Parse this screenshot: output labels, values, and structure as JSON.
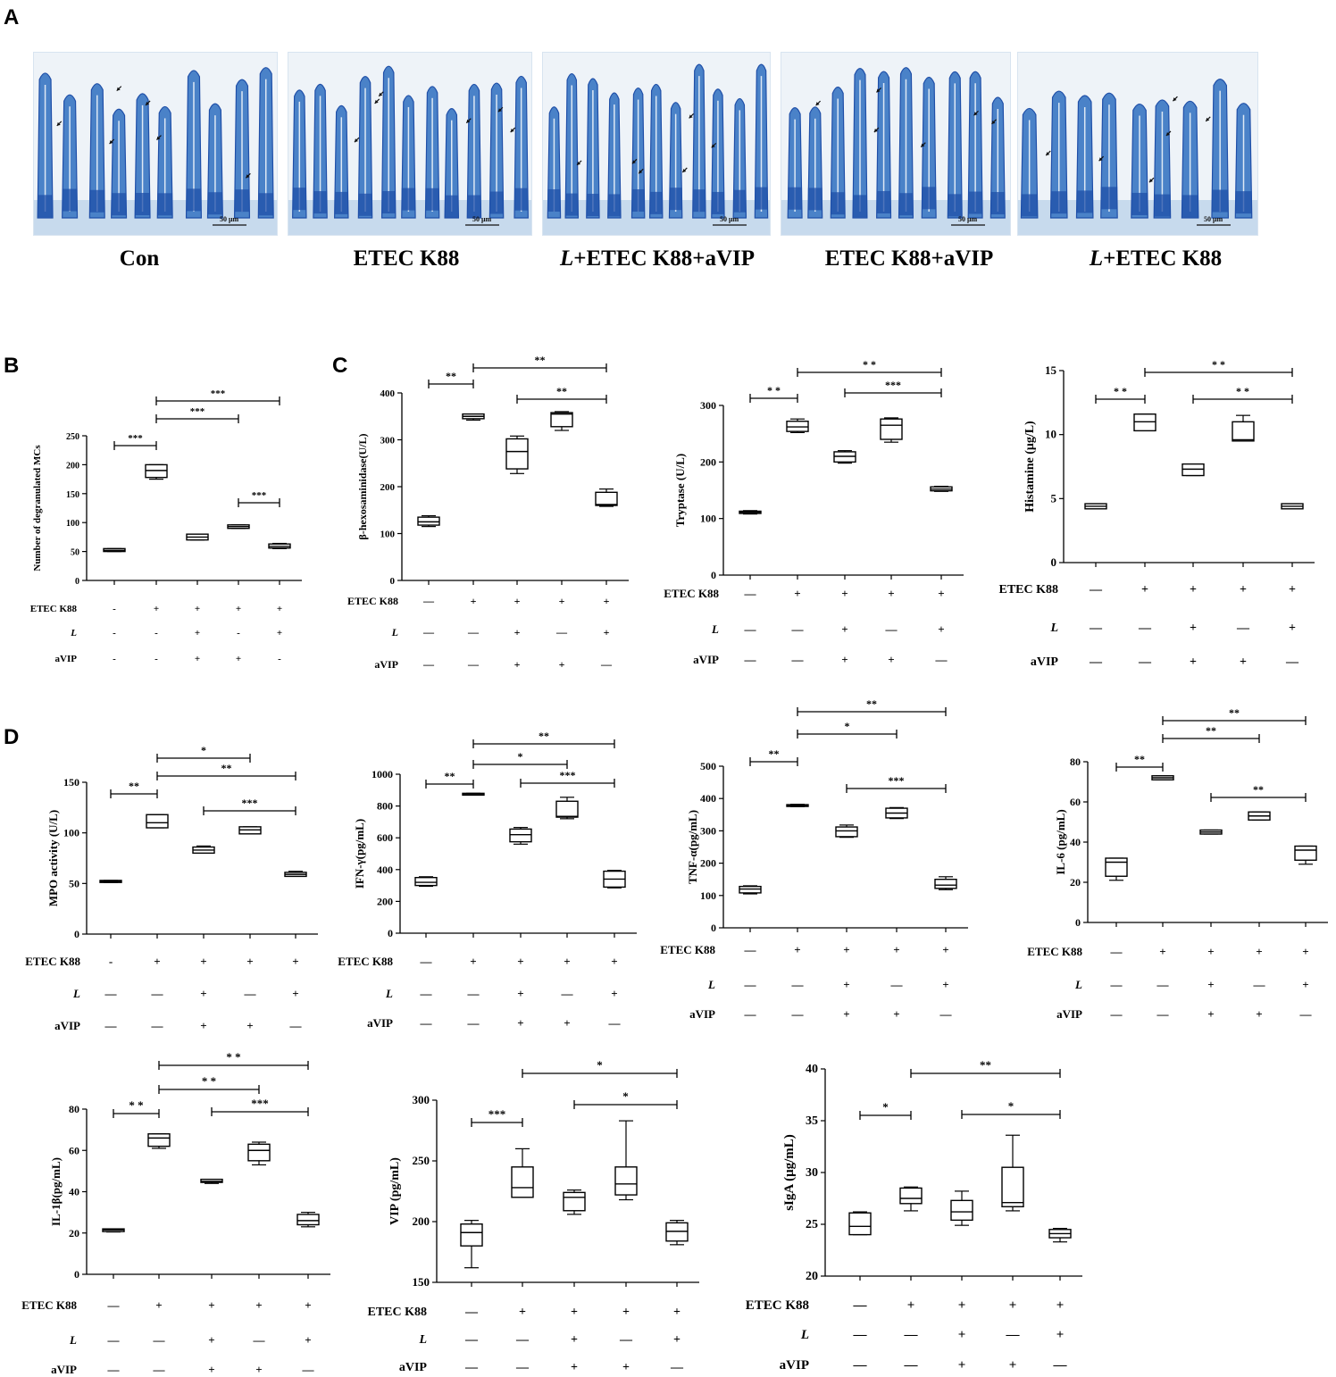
{
  "panels": {
    "a": "A",
    "b": "B",
    "c": "C",
    "d": "D"
  },
  "micrographs": [
    {
      "caption": "Con",
      "scale": "50 μm"
    },
    {
      "caption": "ETEC K88",
      "scale": "50 μm"
    },
    {
      "caption": "L+ETEC K88+aVIP",
      "caption_italic": "L",
      "scale": "50 μm"
    },
    {
      "caption": "ETEC K88+aVIP",
      "scale": "50 μm"
    },
    {
      "caption": "L+ETEC K88",
      "caption_italic": "L",
      "scale": "50 μm"
    }
  ],
  "colors": {
    "tissue_blue": "#4a82c8",
    "dark_blue": "#1f4fa8",
    "light_blue": "#b7cfe8",
    "background": "#ffffff"
  },
  "chart_data": [
    {
      "id": "mcs",
      "type": "box",
      "ylabel": "Number of degranulated MCs",
      "ylim": [
        0,
        250
      ],
      "yticks": [
        0,
        50,
        100,
        150,
        200,
        250
      ],
      "boxes": [
        {
          "min": 50,
          "q1": 50,
          "median": 52,
          "q3": 55,
          "max": 55
        },
        {
          "min": 175,
          "q1": 178,
          "median": 190,
          "q3": 200,
          "max": 200
        },
        {
          "min": 70,
          "q1": 70,
          "median": 75,
          "q3": 80,
          "max": 80
        },
        {
          "min": 90,
          "q1": 90,
          "median": 93,
          "q3": 96,
          "max": 96
        },
        {
          "min": 55,
          "q1": 56,
          "median": 59,
          "q3": 63,
          "max": 64
        }
      ],
      "row_labels": [
        "ETEC K88",
        "L",
        "aVIP"
      ],
      "signs": [
        [
          "-",
          "+",
          "+",
          "+",
          "+"
        ],
        [
          "-",
          "-",
          "+",
          "-",
          "+"
        ],
        [
          "-",
          "-",
          "+",
          "+",
          "-"
        ]
      ],
      "sig": [
        {
          "from": 1,
          "to": 2,
          "label": "***"
        },
        {
          "from": 2,
          "to": 4,
          "label": "***"
        },
        {
          "from": 2,
          "to": 5,
          "label": "***"
        },
        {
          "from": 4,
          "to": 5,
          "label": "***"
        }
      ]
    },
    {
      "id": "hex",
      "type": "box",
      "ylabel": "β-hexosaminidase(U/L)",
      "ylim": [
        0,
        400
      ],
      "yticks": [
        0,
        100,
        200,
        300,
        400
      ],
      "boxes": [
        {
          "min": 115,
          "q1": 118,
          "median": 125,
          "q3": 135,
          "max": 138
        },
        {
          "min": 342,
          "q1": 345,
          "median": 350,
          "q3": 355,
          "max": 355
        },
        {
          "min": 228,
          "q1": 238,
          "median": 275,
          "q3": 302,
          "max": 308
        },
        {
          "min": 320,
          "q1": 328,
          "median": 355,
          "q3": 358,
          "max": 360
        },
        {
          "min": 158,
          "q1": 160,
          "median": 162,
          "q3": 188,
          "max": 195
        }
      ],
      "row_labels": [
        "ETEC K88",
        "L",
        "aVIP"
      ],
      "signs": [
        [
          "—",
          "+",
          "+",
          "+",
          "+"
        ],
        [
          "—",
          "—",
          "+",
          "—",
          "+"
        ],
        [
          "—",
          "—",
          "+",
          "+",
          "—"
        ]
      ],
      "sig": [
        {
          "from": 1,
          "to": 2,
          "label": "**"
        },
        {
          "from": 2,
          "to": 5,
          "label": "**"
        },
        {
          "from": 3,
          "to": 5,
          "label": "**"
        }
      ]
    },
    {
      "id": "tryptase",
      "type": "box",
      "ylabel": "Tryptase (U/L)",
      "ylim": [
        0,
        300
      ],
      "yticks": [
        0,
        100,
        200,
        300
      ],
      "boxes": [
        {
          "min": 108,
          "q1": 109,
          "median": 111,
          "q3": 113,
          "max": 114
        },
        {
          "min": 252,
          "q1": 254,
          "median": 262,
          "q3": 272,
          "max": 276
        },
        {
          "min": 198,
          "q1": 200,
          "median": 210,
          "q3": 218,
          "max": 220
        },
        {
          "min": 235,
          "q1": 240,
          "median": 265,
          "q3": 276,
          "max": 278
        },
        {
          "min": 148,
          "q1": 149,
          "median": 152,
          "q3": 156,
          "max": 157
        }
      ],
      "row_labels": [
        "ETEC K88",
        "L",
        "aVIP"
      ],
      "signs": [
        [
          "—",
          "+",
          "+",
          "+",
          "+"
        ],
        [
          "—",
          "—",
          "+",
          "—",
          "+"
        ],
        [
          "—",
          "—",
          "+",
          "+",
          "—"
        ]
      ],
      "sig": [
        {
          "from": 1,
          "to": 2,
          "label": "* *"
        },
        {
          "from": 2,
          "to": 5,
          "label": "* *"
        },
        {
          "from": 3,
          "to": 5,
          "label": "***"
        }
      ]
    },
    {
      "id": "histamine",
      "type": "box",
      "ylabel": "Histamine (μg/L)",
      "ylim": [
        0,
        15
      ],
      "yticks": [
        0,
        5,
        10,
        15
      ],
      "boxes": [
        {
          "min": 4.2,
          "q1": 4.2,
          "median": 4.4,
          "q3": 4.6,
          "max": 4.6
        },
        {
          "min": 10.3,
          "q1": 10.3,
          "median": 11,
          "q3": 11.6,
          "max": 11.6
        },
        {
          "min": 6.8,
          "q1": 6.8,
          "median": 7.3,
          "q3": 7.7,
          "max": 7.7
        },
        {
          "min": 9.5,
          "q1": 9.5,
          "median": 9.6,
          "q3": 11,
          "max": 11.5
        },
        {
          "min": 4.2,
          "q1": 4.2,
          "median": 4.4,
          "q3": 4.6,
          "max": 4.6
        }
      ],
      "row_labels": [
        "ETEC K88",
        "L",
        "aVIP"
      ],
      "signs": [
        [
          "—",
          "+",
          "+",
          "+",
          "+"
        ],
        [
          "—",
          "—",
          "+",
          "—",
          "+"
        ],
        [
          "—",
          "—",
          "+",
          "+",
          "—"
        ]
      ],
      "sig": [
        {
          "from": 1,
          "to": 2,
          "label": "* *"
        },
        {
          "from": 2,
          "to": 5,
          "label": "* *"
        },
        {
          "from": 3,
          "to": 5,
          "label": "* *"
        }
      ]
    },
    {
      "id": "mpo",
      "type": "box",
      "ylabel": "MPO activity (U/L)",
      "ylim": [
        0,
        150
      ],
      "yticks": [
        0,
        50,
        100,
        150
      ],
      "boxes": [
        {
          "min": 51,
          "q1": 51,
          "median": 52,
          "q3": 53,
          "max": 53
        },
        {
          "min": 105,
          "q1": 105,
          "median": 110,
          "q3": 118,
          "max": 118
        },
        {
          "min": 80,
          "q1": 80,
          "median": 83,
          "q3": 86,
          "max": 87
        },
        {
          "min": 99,
          "q1": 99,
          "median": 103,
          "q3": 106,
          "max": 106
        },
        {
          "min": 57,
          "q1": 57,
          "median": 59,
          "q3": 61,
          "max": 62
        }
      ],
      "row_labels": [
        "ETEC K88",
        "L",
        "aVIP"
      ],
      "signs": [
        [
          "-",
          "+",
          "+",
          "+",
          "+"
        ],
        [
          "—",
          "—",
          "+",
          "—",
          "+"
        ],
        [
          "—",
          "—",
          "+",
          "+",
          "—"
        ]
      ],
      "sig": [
        {
          "from": 1,
          "to": 2,
          "label": "**"
        },
        {
          "from": 2,
          "to": 4,
          "label": "*"
        },
        {
          "from": 2,
          "to": 5,
          "label": "**"
        },
        {
          "from": 3,
          "to": 5,
          "label": "***"
        }
      ]
    },
    {
      "id": "ifn",
      "type": "box",
      "ylabel": "IFN-γ(pg/mL)",
      "ylim": [
        0,
        1000
      ],
      "yticks": [
        0,
        200,
        400,
        600,
        800,
        1000
      ],
      "boxes": [
        {
          "min": 295,
          "q1": 300,
          "median": 320,
          "q3": 350,
          "max": 355
        },
        {
          "min": 870,
          "q1": 872,
          "median": 876,
          "q3": 880,
          "max": 880
        },
        {
          "min": 560,
          "q1": 575,
          "median": 620,
          "q3": 655,
          "max": 665
        },
        {
          "min": 720,
          "q1": 730,
          "median": 735,
          "q3": 830,
          "max": 855
        },
        {
          "min": 285,
          "q1": 290,
          "median": 340,
          "q3": 390,
          "max": 395
        }
      ],
      "row_labels": [
        "ETEC K88",
        "L",
        "aVIP"
      ],
      "signs": [
        [
          "—",
          "+",
          "+",
          "+",
          "+"
        ],
        [
          "—",
          "—",
          "+",
          "—",
          "+"
        ],
        [
          "—",
          "—",
          "+",
          "+",
          "—"
        ]
      ],
      "sig": [
        {
          "from": 1,
          "to": 2,
          "label": "**"
        },
        {
          "from": 2,
          "to": 4,
          "label": "*"
        },
        {
          "from": 2,
          "to": 5,
          "label": "**"
        },
        {
          "from": 3,
          "to": 5,
          "label": "***"
        }
      ]
    },
    {
      "id": "tnf",
      "type": "box",
      "ylabel": "TNF-α(pg/mL)",
      "ylim": [
        0,
        500
      ],
      "yticks": [
        0,
        100,
        200,
        300,
        400,
        500
      ],
      "boxes": [
        {
          "min": 105,
          "q1": 108,
          "median": 120,
          "q3": 128,
          "max": 130
        },
        {
          "min": 375,
          "q1": 376,
          "median": 378,
          "q3": 381,
          "max": 382
        },
        {
          "min": 280,
          "q1": 282,
          "median": 300,
          "q3": 312,
          "max": 318
        },
        {
          "min": 338,
          "q1": 340,
          "median": 355,
          "q3": 370,
          "max": 372
        },
        {
          "min": 118,
          "q1": 122,
          "median": 132,
          "q3": 150,
          "max": 158
        }
      ],
      "row_labels": [
        "ETEC K88",
        "L",
        "aVIP"
      ],
      "signs": [
        [
          "—",
          "+",
          "+",
          "+",
          "+"
        ],
        [
          "—",
          "—",
          "+",
          "—",
          "+"
        ],
        [
          "—",
          "—",
          "+",
          "+",
          "—"
        ]
      ],
      "sig": [
        {
          "from": 1,
          "to": 2,
          "label": "**"
        },
        {
          "from": 2,
          "to": 4,
          "label": "*"
        },
        {
          "from": 2,
          "to": 5,
          "label": "**"
        },
        {
          "from": 3,
          "to": 5,
          "label": "***"
        }
      ]
    },
    {
      "id": "il6",
      "type": "box",
      "ylabel": "IL-6 (pg/mL)",
      "ylim": [
        0,
        80
      ],
      "yticks": [
        0,
        20,
        40,
        60,
        80
      ],
      "boxes": [
        {
          "min": 21,
          "q1": 23,
          "median": 30,
          "q3": 32,
          "max": 32
        },
        {
          "min": 71,
          "q1": 71,
          "median": 72,
          "q3": 73,
          "max": 73
        },
        {
          "min": 44,
          "q1": 44,
          "median": 45,
          "q3": 46,
          "max": 46
        },
        {
          "min": 51,
          "q1": 51,
          "median": 53,
          "q3": 55,
          "max": 55
        },
        {
          "min": 29,
          "q1": 31,
          "median": 36,
          "q3": 38,
          "max": 38
        }
      ],
      "row_labels": [
        "ETEC K88",
        "L",
        "aVIP"
      ],
      "signs": [
        [
          "—",
          "+",
          "+",
          "+",
          "+"
        ],
        [
          "—",
          "—",
          "+",
          "—",
          "+"
        ],
        [
          "—",
          "—",
          "+",
          "+",
          "—"
        ]
      ],
      "sig": [
        {
          "from": 1,
          "to": 2,
          "label": "**"
        },
        {
          "from": 2,
          "to": 4,
          "label": "**"
        },
        {
          "from": 2,
          "to": 5,
          "label": "**"
        },
        {
          "from": 3,
          "to": 5,
          "label": "**"
        }
      ]
    },
    {
      "id": "il1b",
      "type": "box",
      "ylabel": "IL-1β(pg/mL)",
      "ylim": [
        0,
        80
      ],
      "yticks": [
        0,
        20,
        40,
        60,
        80
      ],
      "boxes": [
        {
          "min": 20.5,
          "q1": 20.7,
          "median": 21.5,
          "q3": 22,
          "max": 22
        },
        {
          "min": 61,
          "q1": 62,
          "median": 66,
          "q3": 68,
          "max": 68
        },
        {
          "min": 44,
          "q1": 44.5,
          "median": 45,
          "q3": 46,
          "max": 46
        },
        {
          "min": 53,
          "q1": 55,
          "median": 60,
          "q3": 63,
          "max": 64
        },
        {
          "min": 23,
          "q1": 24,
          "median": 26,
          "q3": 29,
          "max": 30
        }
      ],
      "row_labels": [
        "ETEC K88",
        "L",
        "aVIP"
      ],
      "signs": [
        [
          "—",
          "+",
          "+",
          "+",
          "+"
        ],
        [
          "—",
          "—",
          "+",
          "—",
          "+"
        ],
        [
          "—",
          "—",
          "+",
          "+",
          "—"
        ]
      ],
      "sig": [
        {
          "from": 1,
          "to": 2,
          "label": "* *"
        },
        {
          "from": 2,
          "to": 4,
          "label": "* *"
        },
        {
          "from": 2,
          "to": 5,
          "label": "* *"
        },
        {
          "from": 3,
          "to": 5,
          "label": "***"
        }
      ]
    },
    {
      "id": "vip",
      "type": "box",
      "ylabel": "VIP (pg/mL)",
      "ylim": [
        150,
        300
      ],
      "yticks": [
        150,
        200,
        250,
        300
      ],
      "boxes": [
        {
          "min": 162,
          "q1": 180,
          "median": 191,
          "q3": 198,
          "max": 201
        },
        {
          "min": 220,
          "q1": 220,
          "median": 228,
          "q3": 245,
          "max": 260
        },
        {
          "min": 206,
          "q1": 209,
          "median": 220,
          "q3": 224,
          "max": 226
        },
        {
          "min": 218,
          "q1": 222,
          "median": 231,
          "q3": 245,
          "max": 283
        },
        {
          "min": 181,
          "q1": 184,
          "median": 192,
          "q3": 199,
          "max": 201
        }
      ],
      "row_labels": [
        "ETEC K88",
        "L",
        "aVIP"
      ],
      "signs": [
        [
          "—",
          "+",
          "+",
          "+",
          "+"
        ],
        [
          "—",
          "—",
          "+",
          "—",
          "+"
        ],
        [
          "—",
          "—",
          "+",
          "+",
          "—"
        ]
      ],
      "sig": [
        {
          "from": 1,
          "to": 2,
          "label": "***"
        },
        {
          "from": 2,
          "to": 5,
          "label": "*"
        },
        {
          "from": 3,
          "to": 5,
          "label": "*"
        }
      ]
    },
    {
      "id": "siga",
      "type": "box",
      "ylabel": "sIgA (μg/mL)",
      "ylim": [
        20,
        40
      ],
      "yticks": [
        20,
        25,
        30,
        35,
        40
      ],
      "boxes": [
        {
          "min": 24,
          "q1": 24,
          "median": 24.8,
          "q3": 26.1,
          "max": 26.2
        },
        {
          "min": 26.3,
          "q1": 27,
          "median": 27.5,
          "q3": 28.5,
          "max": 28.6
        },
        {
          "min": 24.9,
          "q1": 25.4,
          "median": 26.2,
          "q3": 27.3,
          "max": 28.2
        },
        {
          "min": 26.3,
          "q1": 26.7,
          "median": 27.1,
          "q3": 30.5,
          "max": 33.6
        },
        {
          "min": 23.3,
          "q1": 23.7,
          "median": 24.1,
          "q3": 24.5,
          "max": 24.6
        }
      ],
      "row_labels": [
        "ETEC K88",
        "L",
        "aVIP"
      ],
      "signs": [
        [
          "—",
          "+",
          "+",
          "+",
          "+"
        ],
        [
          "—",
          "—",
          "+",
          "—",
          "+"
        ],
        [
          "—",
          "—",
          "+",
          "+",
          "—"
        ]
      ],
      "sig": [
        {
          "from": 1,
          "to": 2,
          "label": "*"
        },
        {
          "from": 2,
          "to": 5,
          "label": "**"
        },
        {
          "from": 3,
          "to": 5,
          "label": "*"
        }
      ]
    }
  ]
}
